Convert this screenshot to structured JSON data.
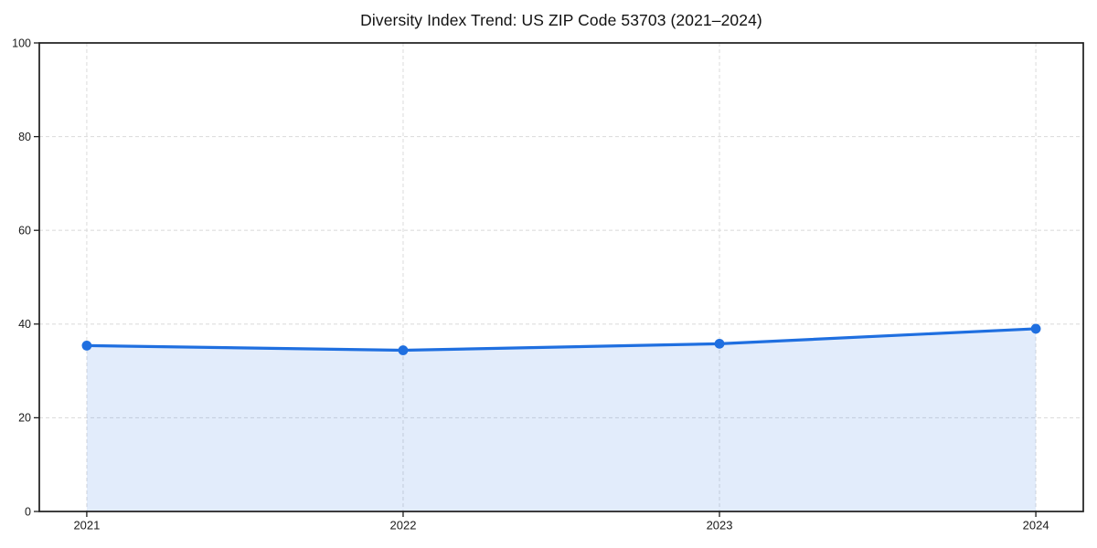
{
  "figure": {
    "background": "#ffffff"
  },
  "chart_data": {
    "type": "area",
    "title": "Diversity Index Trend: US ZIP Code 53703 (2021–2024)",
    "x": [
      2021,
      2022,
      2023,
      2024
    ],
    "x_tick_labels": [
      "2021",
      "2022",
      "2023",
      "2024"
    ],
    "values": [
      35.4,
      34.4,
      35.8,
      39.0
    ],
    "xlabel": "",
    "ylabel": "",
    "xlim": [
      2020.85,
      2024.15
    ],
    "ylim": [
      0,
      100
    ],
    "y_ticks": [
      0,
      20,
      40,
      60,
      80,
      100
    ],
    "grid": {
      "visible": true,
      "line_style": "dashed",
      "color": "#dedede"
    },
    "legend": {
      "visible": false
    },
    "marker": "circle",
    "style": {
      "line_color": "#1f6fe0",
      "marker_color": "#1f6fe0",
      "fill_color": "rgba(31,111,224,0.13)",
      "spine_color": "#1c1c1c",
      "tick_color": "#1c1c1c",
      "tick_label_color": "#1a1a1a",
      "title_color": "#111111"
    }
  }
}
